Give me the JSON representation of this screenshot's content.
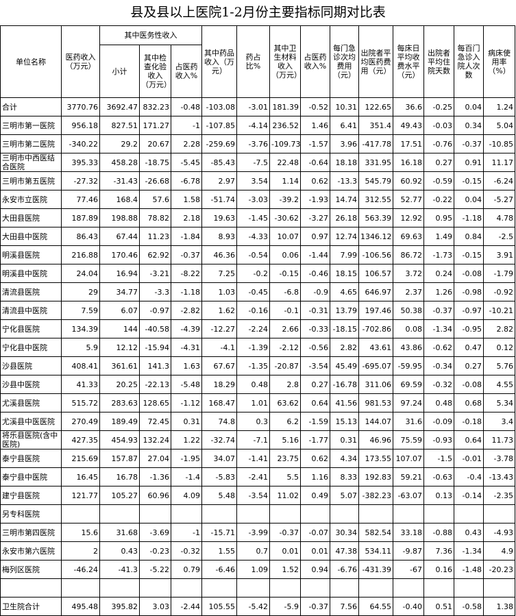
{
  "title": "县及县以上医院1-2月份主要指标同期对比表",
  "header": {
    "group": "其中医务性收入",
    "columns": [
      "单位名称",
      "医药收入（万元）",
      "小计",
      "其中检查化验收入（万元）",
      "占医药收入%",
      "其中药品收入（万元）",
      "药占比%",
      "其中卫生材料收入（万元）",
      "占医药收入%",
      "每门急诊次均费用（元）",
      "出院者平均医药费用（元）",
      "每床日平均收费水平（元）",
      "出院者平均住院天数",
      "每百门急诊入院人次数",
      "病床使用率（%）"
    ]
  },
  "table": {
    "rows": [
      [
        "合计",
        "3770.76",
        "3692.47",
        "832.23",
        "-0.48",
        "-103.08",
        "-3.01",
        "181.39",
        "-0.52",
        "10.31",
        "122.65",
        "36.6",
        "-0.25",
        "0.04",
        "1.24"
      ],
      [
        "三明市第一医院",
        "956.18",
        "827.51",
        "171.27",
        "-1",
        "-107.85",
        "-4.14",
        "236.52",
        "1.46",
        "6.41",
        "351.4",
        "49.43",
        "-0.03",
        "0.34",
        "5.04"
      ],
      [
        "三明市第二医院",
        "-340.22",
        "29.2",
        "20.67",
        "2.28",
        "-259.69",
        "-3.76",
        "-109.73",
        "-1.57",
        "3.96",
        "-417.78",
        "17.51",
        "-0.76",
        "-0.37",
        "-10.85"
      ],
      [
        "三明市中西医结合医院",
        "395.33",
        "458.28",
        "-18.75",
        "-5.45",
        "-85.43",
        "-7.5",
        "22.48",
        "-0.64",
        "18.18",
        "331.95",
        "16.18",
        "0.27",
        "0.91",
        "11.17"
      ],
      [
        "三明市第五医院",
        "-27.32",
        "-31.43",
        "-26.68",
        "-6.78",
        "2.97",
        "3.54",
        "1.14",
        "0.62",
        "-13.3",
        "545.79",
        "60.92",
        "-0.59",
        "-0.15",
        "-6.24"
      ],
      [
        "永安市立医院",
        "77.46",
        "168.4",
        "57.6",
        "1.58",
        "-51.74",
        "-3.03",
        "-39.2",
        "-1.93",
        "14.74",
        "312.55",
        "52.77",
        "-0.22",
        "0.04",
        "-5.27"
      ],
      [
        "大田县医院",
        "187.89",
        "198.88",
        "78.82",
        "2.18",
        "19.63",
        "-1.45",
        "-30.62",
        "-3.27",
        "26.18",
        "563.39",
        "12.92",
        "0.95",
        "-1.18",
        "4.78"
      ],
      [
        "大田县中医院",
        "86.43",
        "67.44",
        "11.23",
        "-1.84",
        "8.93",
        "-4.33",
        "10.07",
        "0.97",
        "12.74",
        "1346.12",
        "69.63",
        "1.49",
        "0.84",
        "-2.5"
      ],
      [
        "明溪县医院",
        "216.88",
        "170.46",
        "62.92",
        "-0.37",
        "46.36",
        "-0.54",
        "0.06",
        "-1.44",
        "7.99",
        "-106.56",
        "86.72",
        "-1.73",
        "-0.15",
        "3.91"
      ],
      [
        "明溪县中医院",
        "24.04",
        "16.94",
        "-3.21",
        "-8.22",
        "7.25",
        "-0.2",
        "-0.15",
        "-0.46",
        "18.15",
        "106.57",
        "3.72",
        "0.24",
        "-0.08",
        "-1.79"
      ],
      [
        "清流县医院",
        "29",
        "34.77",
        "-3.3",
        "-1.18",
        "1.03",
        "-0.45",
        "-6.8",
        "-0.9",
        "4.65",
        "646.97",
        "2.37",
        "1.26",
        "-0.98",
        "-0.92"
      ],
      [
        "清流县中医院",
        "7.59",
        "6.07",
        "-0.97",
        "-2.82",
        "1.62",
        "-0.16",
        "-0.1",
        "-0.31",
        "13.79",
        "197.46",
        "50.38",
        "-0.37",
        "-0.97",
        "-10.21"
      ],
      [
        "宁化县医院",
        "134.39",
        "144",
        "-40.58",
        "-4.39",
        "-12.27",
        "-2.24",
        "2.66",
        "-0.33",
        "-18.15",
        "-702.86",
        "0.08",
        "-1.34",
        "-0.95",
        "2.82"
      ],
      [
        "宁化县中医院",
        "5.9",
        "12.12",
        "-15.94",
        "-4.31",
        "-4.1",
        "-1.39",
        "-2.12",
        "-0.56",
        "2.82",
        "43.61",
        "43.86",
        "-0.62",
        "0.47",
        "0.12"
      ],
      [
        "沙县医院",
        "408.41",
        "361.61",
        "141.3",
        "1.63",
        "67.67",
        "-1.35",
        "-20.87",
        "-3.54",
        "45.49",
        "-695.07",
        "-59.95",
        "-0.34",
        "0.27",
        "5.76"
      ],
      [
        "沙县中医院",
        "41.33",
        "20.25",
        "-22.13",
        "-5.48",
        "18.29",
        "0.48",
        "2.8",
        "0.27",
        "-16.78",
        "311.06",
        "69.59",
        "-0.32",
        "-0.08",
        "4.55"
      ],
      [
        "尤溪县医院",
        "515.72",
        "283.63",
        "128.65",
        "-1.12",
        "168.47",
        "1.01",
        "63.62",
        "0.64",
        "41.56",
        "981.53",
        "97.24",
        "0.48",
        "0.68",
        "5.34"
      ],
      [
        "尤溪县中医医院",
        "270.49",
        "189.49",
        "72.45",
        "0.31",
        "74.8",
        "0.3",
        "6.2",
        "-1.59",
        "15.13",
        "144.07",
        "31.6",
        "-0.09",
        "-0.18",
        "3.4"
      ],
      [
        "将乐县医院(含中医院)",
        "427.35",
        "454.93",
        "132.24",
        "1.22",
        "-32.74",
        "-7.1",
        "5.16",
        "-1.77",
        "0.31",
        "46.96",
        "75.59",
        "-0.93",
        "0.64",
        "11.73"
      ],
      [
        "泰宁县医院",
        "215.69",
        "157.87",
        "27.04",
        "-1.95",
        "34.07",
        "-1.41",
        "23.75",
        "0.62",
        "4.34",
        "173.55",
        "107.07",
        "-1.5",
        "-0.01",
        "-3.78"
      ],
      [
        "泰宁县中医院",
        "16.45",
        "16.78",
        "-1.36",
        "-1.4",
        "-5.83",
        "-2.41",
        "5.5",
        "1.16",
        "8.33",
        "192.83",
        "59.21",
        "-0.63",
        "-0.4",
        "-13.43"
      ],
      [
        "建宁县医院",
        "121.77",
        "105.27",
        "60.96",
        "4.09",
        "5.48",
        "-3.54",
        "11.02",
        "0.49",
        "5.07",
        "-382.23",
        "-63.07",
        "0.13",
        "-0.14",
        "-2.35"
      ],
      [
        "另专科医院"
      ],
      [
        "三明市第四医院",
        "15.6",
        "31.68",
        "-3.69",
        "-1",
        "-15.71",
        "-3.99",
        "-0.37",
        "-0.07",
        "30.34",
        "582.54",
        "33.18",
        "-0.88",
        "0.43",
        "-4.93"
      ],
      [
        "永安市第六医院",
        "2",
        "0.43",
        "-0.23",
        "-0.32",
        "1.55",
        "0.7",
        "0.01",
        "0.01",
        "47.38",
        "534.11",
        "-9.87",
        "7.36",
        "-1.34",
        "4.9"
      ],
      [
        "梅列区医院",
        "-46.24",
        "-41.3",
        "-5.22",
        "0.79",
        "-6.46",
        "1.09",
        "1.52",
        "0.94",
        "-6.76",
        "-431.39",
        "-67",
        "0.16",
        "-1.48",
        "-20.23"
      ],
      [],
      [
        "卫生院合计",
        "495.48",
        "395.82",
        "3.03",
        "-2.44",
        "105.55",
        "-5.42",
        "-5.9",
        "-0.37",
        "7.56",
        "64.55",
        "-0.40",
        "0.51",
        "-0.58",
        "1.38"
      ]
    ]
  }
}
